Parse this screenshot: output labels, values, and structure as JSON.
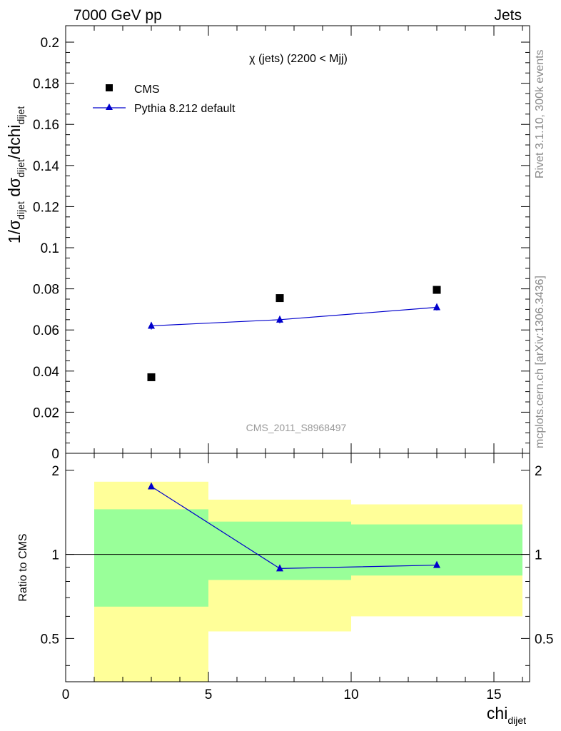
{
  "header": {
    "energy": "7000 GeV pp",
    "process": "Jets"
  },
  "side_labels": {
    "rivet": "Rivet 3.1.10,  300k events",
    "source": "mcplots.cern.ch [arXiv:1306.3436]"
  },
  "watermark": "CMS_2011_S8968497",
  "chart_data": [
    {
      "type": "scatter",
      "title": "χ (jets) (2200 < Mjj)",
      "ylabel": "1/σdijet dσdijet/dchidijet",
      "ylim": [
        0,
        0.208
      ],
      "yticks": [
        "0",
        "0.02",
        "0.04",
        "0.06",
        "0.08",
        "0.1",
        "0.12",
        "0.14",
        "0.16",
        "0.18",
        "0.2"
      ],
      "xlim": [
        0,
        16.25
      ],
      "legend_placement": "top-left",
      "series": [
        {
          "name": "CMS",
          "color": "#000000",
          "marker": "square",
          "x": [
            3.0,
            7.5,
            13.0
          ],
          "values": [
            0.037,
            0.0755,
            0.0795
          ]
        },
        {
          "name": "Pythia 8.212 default",
          "color": "#0000cc",
          "marker": "triangle",
          "x": [
            3.0,
            7.5,
            13.0
          ],
          "values": [
            0.062,
            0.065,
            0.071
          ],
          "errors": [
            0.0018,
            0.0018,
            0.0015
          ]
        }
      ]
    },
    {
      "type": "line",
      "ylabel": "Ratio to CMS",
      "xlabel": "chidijet",
      "ylim": [
        0.35,
        2.3
      ],
      "yticks": [
        "0.5",
        "1",
        "2"
      ],
      "xticks": [
        "0",
        "5",
        "10",
        "15"
      ],
      "xlim": [
        0,
        16.25
      ],
      "bins": [
        {
          "x_low": 1,
          "x_high": 5,
          "band_1sigma": [
            0.65,
            1.45
          ],
          "band_2sigma": [
            0.35,
            1.82
          ]
        },
        {
          "x_low": 5,
          "x_high": 10,
          "band_1sigma": [
            0.81,
            1.31
          ],
          "band_2sigma": [
            0.53,
            1.57
          ]
        },
        {
          "x_low": 10,
          "x_high": 16,
          "band_1sigma": [
            0.84,
            1.28
          ],
          "band_2sigma": [
            0.6,
            1.51
          ]
        }
      ],
      "series": [
        {
          "name": "Pythia 8.212 default",
          "color": "#0000cc",
          "x": [
            3.0,
            7.5,
            13.0
          ],
          "values": [
            1.75,
            0.89,
            0.915
          ],
          "errors": [
            0.04,
            0.0,
            0.0
          ]
        }
      ],
      "band_colors": {
        "inner": "#99ff99",
        "outer": "#ffff99"
      },
      "reference_line": 1
    }
  ]
}
